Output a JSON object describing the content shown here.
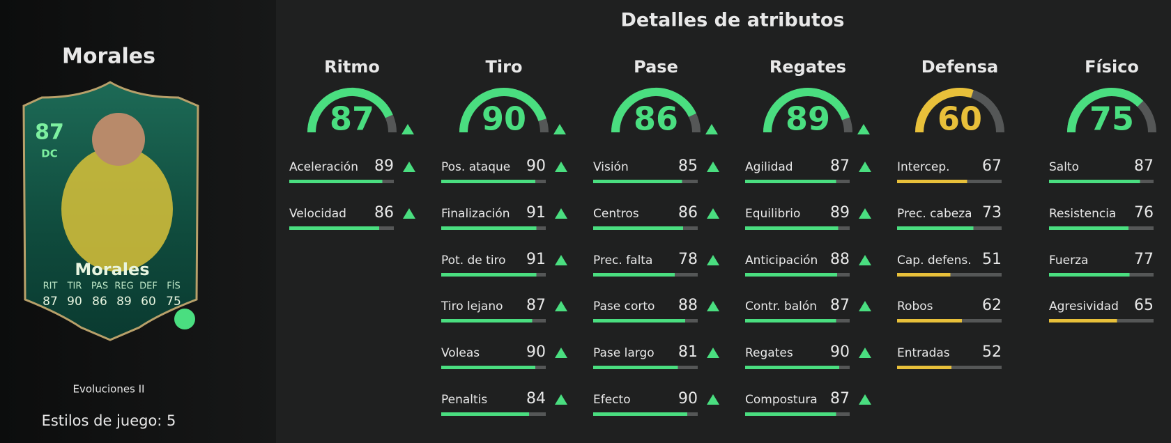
{
  "player": {
    "name": "Morales",
    "card": {
      "rating": 87,
      "position": "DC",
      "name": "Morales",
      "stats": [
        {
          "label": "RIT",
          "value": 87
        },
        {
          "label": "TIR",
          "value": 90
        },
        {
          "label": "PAS",
          "value": 86
        },
        {
          "label": "REG",
          "value": 89
        },
        {
          "label": "DEF",
          "value": 60
        },
        {
          "label": "FÍS",
          "value": 75
        }
      ]
    },
    "version": "Evoluciones II",
    "playstyles": "Estilos de juego: 5"
  },
  "attributes": {
    "title": "Detalles de atributos",
    "groups": [
      {
        "name": "Ritmo",
        "value": 87,
        "upgraded": true,
        "items": [
          {
            "label": "Aceleración",
            "value": 89
          },
          {
            "label": "Velocidad",
            "value": 86
          }
        ]
      },
      {
        "name": "Tiro",
        "value": 90,
        "upgraded": true,
        "items": [
          {
            "label": "Pos. ataque",
            "value": 90
          },
          {
            "label": "Finalización",
            "value": 91
          },
          {
            "label": "Pot. de tiro",
            "value": 91
          },
          {
            "label": "Tiro lejano",
            "value": 87
          },
          {
            "label": "Voleas",
            "value": 90
          },
          {
            "label": "Penaltis",
            "value": 84
          }
        ]
      },
      {
        "name": "Pase",
        "value": 86,
        "upgraded": true,
        "items": [
          {
            "label": "Visión",
            "value": 85
          },
          {
            "label": "Centros",
            "value": 86
          },
          {
            "label": "Prec. falta",
            "value": 78
          },
          {
            "label": "Pase corto",
            "value": 88
          },
          {
            "label": "Pase largo",
            "value": 81
          },
          {
            "label": "Efecto",
            "value": 90
          }
        ]
      },
      {
        "name": "Regates",
        "value": 89,
        "upgraded": true,
        "items": [
          {
            "label": "Agilidad",
            "value": 87
          },
          {
            "label": "Equilibrio",
            "value": 89
          },
          {
            "label": "Anticipación",
            "value": 88
          },
          {
            "label": "Contr. balón",
            "value": 87
          },
          {
            "label": "Regates",
            "value": 90
          },
          {
            "label": "Compostura",
            "value": 87
          }
        ]
      },
      {
        "name": "Defensa",
        "value": 60,
        "upgraded": false,
        "items": [
          {
            "label": "Intercep.",
            "value": 67
          },
          {
            "label": "Prec. cabeza",
            "value": 73
          },
          {
            "label": "Cap. defens.",
            "value": 51
          },
          {
            "label": "Robos",
            "value": 62
          },
          {
            "label": "Entradas",
            "value": 52
          }
        ]
      },
      {
        "name": "Físico",
        "value": 75,
        "upgraded": false,
        "items": [
          {
            "label": "Salto",
            "value": 87
          },
          {
            "label": "Resistencia",
            "value": 76
          },
          {
            "label": "Fuerza",
            "value": 77
          },
          {
            "label": "Agresividad",
            "value": 65
          }
        ]
      }
    ]
  }
}
